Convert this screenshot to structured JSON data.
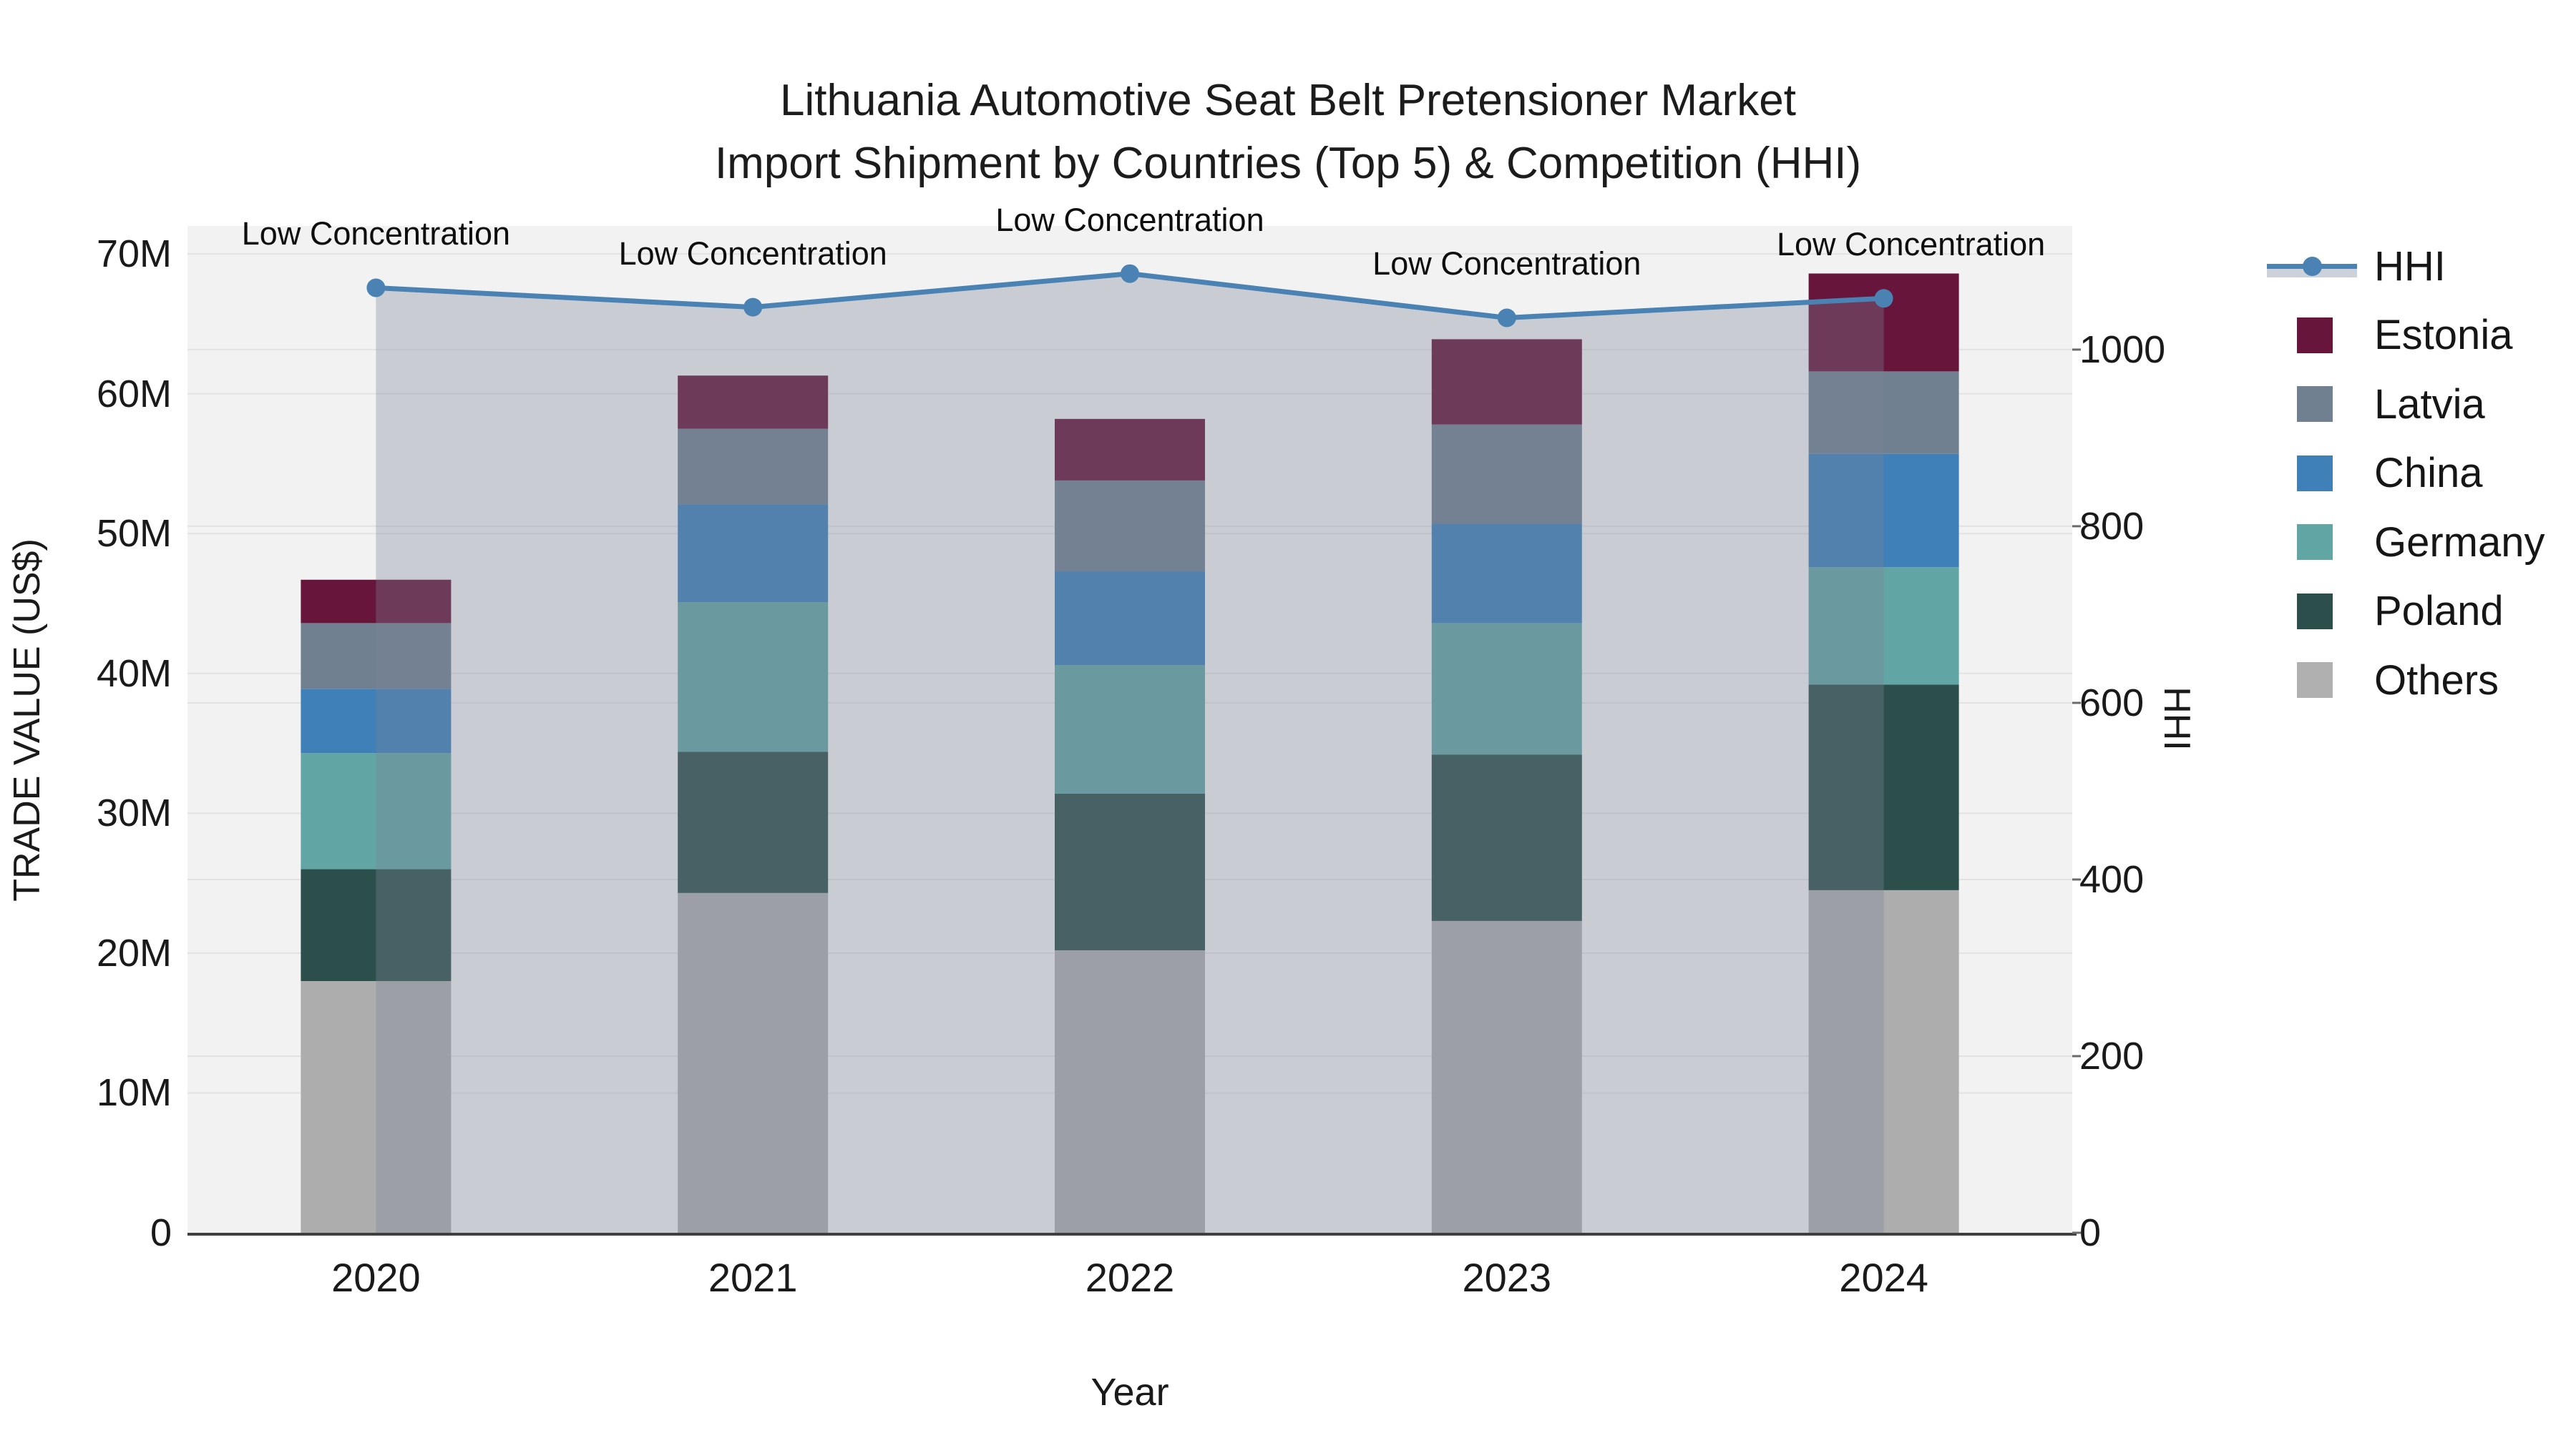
{
  "figure": {
    "title_line1": "Lithuania Automotive Seat Belt Pretensioner Market",
    "title_line2": "Import Shipment by Countries (Top 5) & Competition (HHI)"
  },
  "axes": {
    "x": {
      "title": "Year",
      "ticks": [
        "2020",
        "2021",
        "2022",
        "2023",
        "2024"
      ]
    },
    "y_left": {
      "title": "TRADE VALUE (US$)",
      "ticks": [
        "0",
        "10M",
        "20M",
        "30M",
        "40M",
        "50M",
        "60M",
        "70M"
      ],
      "tick_values": [
        0,
        10,
        20,
        30,
        40,
        50,
        60,
        70
      ],
      "range": [
        0,
        72
      ]
    },
    "y_right": {
      "title": "HHI",
      "ticks": [
        "0",
        "200",
        "400",
        "600",
        "800",
        "1000"
      ],
      "tick_values": [
        0,
        200,
        400,
        600,
        800,
        1000
      ],
      "range": [
        0,
        1140
      ]
    }
  },
  "legend": {
    "items": [
      {
        "label": "HHI",
        "type": "line",
        "color": "#4a82b4"
      },
      {
        "label": "Estonia",
        "type": "swatch",
        "color": "#67153a"
      },
      {
        "label": "Latvia",
        "type": "swatch",
        "color": "#708090"
      },
      {
        "label": "China",
        "type": "swatch",
        "color": "#3f80b8"
      },
      {
        "label": "Germany",
        "type": "swatch",
        "color": "#61a6a5"
      },
      {
        "label": "Poland",
        "type": "swatch",
        "color": "#2d4f4b"
      },
      {
        "label": "Others",
        "type": "swatch",
        "color": "#b0b0b0"
      }
    ]
  },
  "chart_data": {
    "type": "bar",
    "subtype": "stacked bars with HHI line overlay and area fill",
    "title": "Lithuania Automotive Seat Belt Pretensioner Market Import Shipment by Countries (Top 5) & Competition (HHI)",
    "xlabel": "Year",
    "ylabel": "TRADE VALUE (US$)",
    "ylabel_right": "HHI",
    "units": "million US$",
    "ylim_left": [
      0,
      72
    ],
    "ylim_right": [
      0,
      1140
    ],
    "grid": true,
    "legend_position": "right",
    "categories": [
      "2020",
      "2021",
      "2022",
      "2023",
      "2024"
    ],
    "series": [
      {
        "name": "Others",
        "color": "#adadad",
        "values": [
          18.0,
          24.3,
          20.2,
          22.3,
          24.5
        ]
      },
      {
        "name": "Poland",
        "color": "#2d4f4b",
        "values": [
          8.0,
          10.1,
          11.2,
          11.9,
          14.7
        ]
      },
      {
        "name": "Germany",
        "color": "#61a6a5",
        "values": [
          8.3,
          10.7,
          9.2,
          9.4,
          8.4
        ]
      },
      {
        "name": "China",
        "color": "#3f80b8",
        "values": [
          4.6,
          7.0,
          6.7,
          7.1,
          8.1
        ]
      },
      {
        "name": "Latvia",
        "color": "#708090",
        "values": [
          4.7,
          5.4,
          6.5,
          7.1,
          5.9
        ]
      },
      {
        "name": "Estonia",
        "color": "#67153a",
        "values": [
          3.1,
          3.8,
          4.4,
          6.1,
          7.0
        ]
      }
    ],
    "bar_totals": [
      46.7,
      61.3,
      58.2,
      63.9,
      68.6
    ],
    "line_series": {
      "name": "HHI",
      "axis": "right",
      "color": "#4a82b4",
      "fill_color": "rgba(122,131,153,0.34)",
      "values": [
        1070,
        1048,
        1086,
        1036,
        1058
      ],
      "annotations": [
        "Low Concentration",
        "Low Concentration",
        "Low Concentration",
        "Low Concentration",
        "Low Concentration"
      ]
    }
  },
  "colors": {
    "plot_background": "#f2f2f2",
    "figure_background": "#ffffff",
    "gridline": "#e2e2e2",
    "axis_line": "#3f3f3f",
    "hhi_line": "#4a82b4",
    "area_fill": "rgba(122,131,153,0.34)"
  }
}
